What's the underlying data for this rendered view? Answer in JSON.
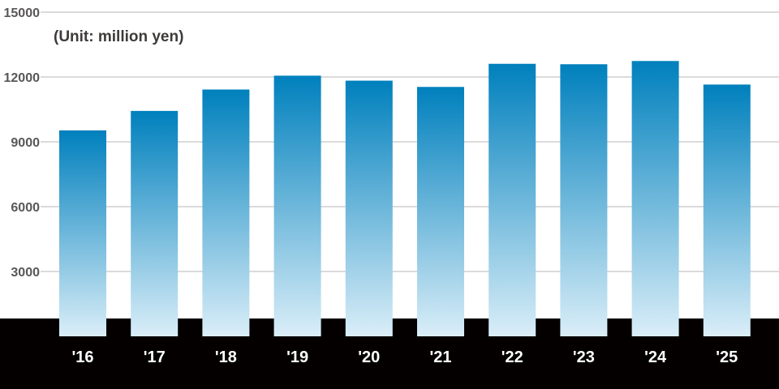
{
  "chart_data": {
    "type": "bar",
    "categories": [
      "'16",
      "'17",
      "'18",
      "'19",
      "'20",
      "'21",
      "'22",
      "'23",
      "'24",
      "'25"
    ],
    "values": [
      9530,
      10430,
      11420,
      12060,
      11830,
      11540,
      12610,
      12590,
      12740,
      11650
    ],
    "unit_note": "(Unit: million yen)",
    "y_ticks": [
      3000,
      6000,
      9000,
      12000,
      15000
    ],
    "ylim": [
      0,
      15000
    ],
    "grid": true,
    "colors": {
      "bar_top": "#0080bd",
      "bar_bottom": "#daeef8",
      "grid": "#cfcfcf",
      "axis_band": "#040000",
      "tick_text": "#595757"
    }
  }
}
